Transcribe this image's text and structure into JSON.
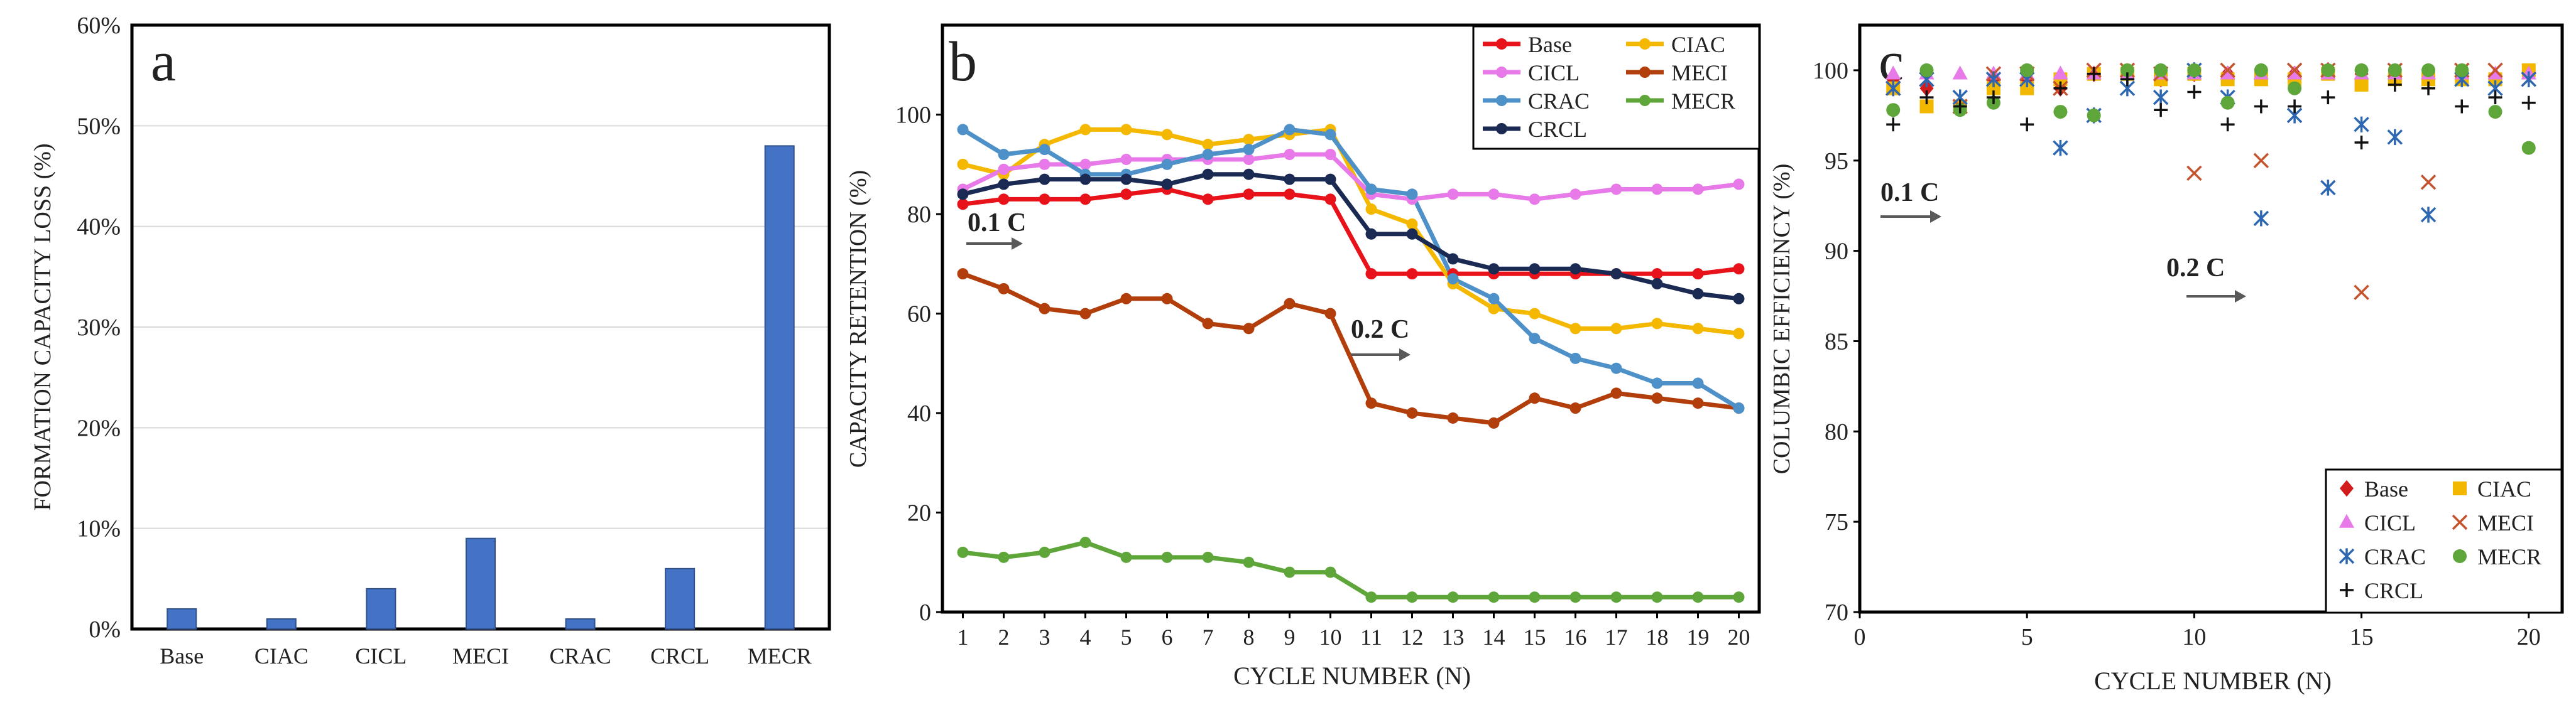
{
  "chart_data": [
    {
      "panel_label": "a",
      "type": "bar",
      "title": "",
      "xlabel": "",
      "ylabel": "FORMATION  CAPACITY  LOSS (%)",
      "categories": [
        "Base",
        "CIAC",
        "CICL",
        "MECI",
        "CRAC",
        "CRCL",
        "MECR"
      ],
      "values": [
        2,
        1,
        4,
        9,
        1,
        6,
        48
      ],
      "ylim": [
        0,
        60
      ],
      "yticks": [
        "0%",
        "10%",
        "20%",
        "30%",
        "40%",
        "50%",
        "60%"
      ],
      "bar_color": "#4472c4"
    },
    {
      "panel_label": "b",
      "type": "line",
      "xlabel": "CYCLE NUMBER (N)",
      "ylabel": "CAPACITY  RETENTION  (%)",
      "x": [
        1,
        2,
        3,
        4,
        5,
        6,
        7,
        8,
        9,
        10,
        11,
        12,
        13,
        14,
        15,
        16,
        17,
        18,
        19,
        20
      ],
      "xlim": [
        0.5,
        20.5
      ],
      "ylim": [
        0,
        118
      ],
      "yticks": [
        0,
        20,
        40,
        60,
        80,
        100
      ],
      "annotations": [
        "0.1 C",
        "0.2 C"
      ],
      "series": [
        {
          "name": "Base",
          "color": "#e8121a",
          "values": [
            82,
            83,
            83,
            83,
            84,
            85,
            83,
            84,
            84,
            83,
            68,
            68,
            68,
            68,
            68,
            68,
            68,
            68,
            68,
            69
          ]
        },
        {
          "name": "CIAC",
          "color": "#f5b800",
          "values": [
            90,
            88,
            94,
            97,
            97,
            96,
            94,
            95,
            96,
            97,
            81,
            78,
            66,
            61,
            60,
            57,
            57,
            58,
            57,
            56
          ]
        },
        {
          "name": "CICL",
          "color": "#e879e8",
          "values": [
            85,
            89,
            90,
            90,
            91,
            91,
            91,
            91,
            92,
            92,
            84,
            83,
            84,
            84,
            83,
            84,
            85,
            85,
            85,
            86
          ]
        },
        {
          "name": "MECI",
          "color": "#b23e0c",
          "values": [
            68,
            65,
            61,
            60,
            63,
            63,
            58,
            57,
            62,
            60,
            42,
            40,
            39,
            38,
            43,
            41,
            44,
            43,
            42,
            41
          ]
        },
        {
          "name": "CRAC",
          "color": "#4e90c8",
          "values": [
            97,
            92,
            93,
            88,
            88,
            90,
            92,
            93,
            97,
            96,
            85,
            84,
            67,
            63,
            55,
            51,
            49,
            46,
            46,
            41
          ]
        },
        {
          "name": "MECR",
          "color": "#5fa63a",
          "values": [
            12,
            11,
            12,
            14,
            11,
            11,
            11,
            10,
            8,
            8,
            3,
            3,
            3,
            3,
            3,
            3,
            3,
            3,
            3,
            3
          ]
        },
        {
          "name": "CRCL",
          "color": "#1a2a52",
          "values": [
            84,
            86,
            87,
            87,
            87,
            86,
            88,
            88,
            87,
            87,
            76,
            76,
            71,
            69,
            69,
            69,
            68,
            66,
            64,
            63
          ]
        }
      ]
    },
    {
      "panel_label": "c",
      "type": "scatter",
      "xlabel": "CYCLE NUMBER  (N)",
      "ylabel": "COLUMBIC EFFICIENCY (%)",
      "xlim": [
        0,
        21
      ],
      "ylim": [
        70,
        102.5
      ],
      "xticks": [
        0,
        5,
        10,
        15,
        20
      ],
      "yticks": [
        70,
        75,
        80,
        85,
        90,
        95,
        100
      ],
      "annotations": [
        "0.1 C",
        "0.2 C"
      ],
      "series": [
        {
          "name": "Base",
          "marker": "diamond",
          "color": "#d21c1c",
          "x": [
            1,
            2,
            3,
            4,
            5,
            6,
            7,
            8,
            9,
            10,
            11,
            12,
            13,
            14,
            15,
            16,
            17,
            18,
            19,
            20
          ],
          "values": [
            99.5,
            99,
            98,
            99.5,
            99.5,
            99,
            99.8,
            99.8,
            99.5,
            99.8,
            99.8,
            99.8,
            99.8,
            100,
            99.8,
            99.8,
            99.8,
            99.8,
            99.5,
            99.8
          ]
        },
        {
          "name": "CIAC",
          "marker": "square",
          "color": "#f2b800",
          "x": [
            1,
            2,
            3,
            4,
            5,
            6,
            7,
            8,
            9,
            10,
            11,
            12,
            13,
            14,
            15,
            16,
            17,
            18,
            19,
            20
          ],
          "values": [
            99,
            98,
            98,
            99,
            99,
            99.5,
            99.8,
            99.8,
            99.5,
            99.8,
            99.5,
            99.5,
            99.5,
            99.8,
            99.2,
            99.5,
            99.5,
            99.5,
            99.5,
            100
          ]
        },
        {
          "name": "CICL",
          "marker": "triangle",
          "color": "#e879e8",
          "x": [
            1,
            2,
            3,
            4,
            5,
            6,
            7,
            8,
            9,
            10,
            11,
            12,
            13,
            14,
            15,
            16,
            17,
            18,
            19,
            20
          ],
          "values": [
            99.8,
            99.8,
            99.8,
            99.8,
            99.8,
            99.8,
            99.8,
            99.8,
            99.8,
            99.8,
            99.8,
            99.8,
            99.8,
            99.8,
            99.8,
            99.8,
            99.8,
            99.8,
            99.8,
            99.8
          ]
        },
        {
          "name": "MECI",
          "marker": "x",
          "color": "#c5532d",
          "x": [
            1,
            2,
            3,
            4,
            5,
            6,
            7,
            8,
            9,
            10,
            11,
            12,
            13,
            14,
            15,
            16,
            17,
            18,
            19,
            20
          ],
          "values": [
            99,
            99.5,
            98,
            99.8,
            99.8,
            99,
            100,
            100,
            99.8,
            94.3,
            100,
            95,
            100,
            100,
            87.7,
            100,
            93.8,
            100,
            100,
            99.5
          ]
        },
        {
          "name": "CRAC",
          "marker": "star",
          "color": "#2e67b1",
          "x": [
            1,
            2,
            3,
            4,
            5,
            6,
            7,
            8,
            9,
            10,
            11,
            12,
            13,
            14,
            15,
            16,
            17,
            18,
            19,
            20
          ],
          "values": [
            99,
            99.5,
            98.5,
            99.5,
            99.5,
            95.7,
            97.5,
            99,
            98.5,
            100,
            98.5,
            91.8,
            97.5,
            93.5,
            97,
            96.3,
            92,
            99.5,
            99,
            99.5
          ]
        },
        {
          "name": "MECR",
          "marker": "circle",
          "color": "#5fa63a",
          "x": [
            1,
            2,
            3,
            4,
            5,
            6,
            7,
            8,
            9,
            10,
            11,
            12,
            13,
            14,
            15,
            16,
            17,
            18,
            19,
            20
          ],
          "values": [
            97.8,
            100,
            97.8,
            98.2,
            100,
            97.7,
            97.5,
            100,
            100,
            100,
            98.2,
            100,
            99,
            100,
            100,
            100,
            100,
            100,
            97.7,
            95.7
          ]
        },
        {
          "name": "CRCL",
          "marker": "plus",
          "color": "#111111",
          "x": [
            1,
            2,
            3,
            4,
            5,
            6,
            7,
            8,
            9,
            10,
            11,
            12,
            13,
            14,
            15,
            16,
            17,
            18,
            19,
            20
          ],
          "values": [
            97,
            98.5,
            98,
            98.5,
            97,
            99,
            99.8,
            99.5,
            97.8,
            98.8,
            97,
            98,
            98,
            98.5,
            96,
            99.2,
            99,
            98,
            98.5,
            98.2
          ]
        }
      ]
    }
  ]
}
